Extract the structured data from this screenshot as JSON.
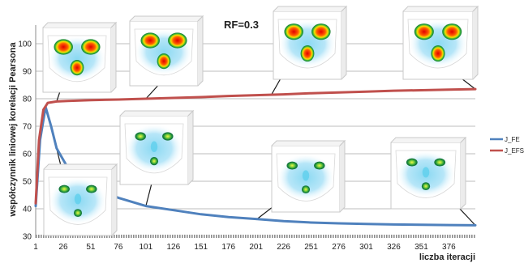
{
  "chart_data": {
    "type": "line",
    "title": "RF=0.3",
    "xlabel": "liczba iteracji",
    "ylabel": "współczynnik liniowej korelacji Pearsona",
    "x_ticks": [
      1,
      26,
      51,
      76,
      101,
      126,
      151,
      176,
      201,
      226,
      251,
      276,
      301,
      326,
      351,
      376
    ],
    "y_ticks": [
      30,
      40,
      50,
      60,
      70,
      80,
      90,
      100
    ],
    "xlim": [
      1,
      400
    ],
    "ylim": [
      30,
      105
    ],
    "grid": "horizontal",
    "legend_position": "right",
    "series": [
      {
        "name": "J_FE",
        "color": "#4f81bd",
        "x": [
          1,
          5,
          10,
          15,
          20,
          30,
          40,
          51,
          76,
          101,
          126,
          151,
          176,
          201,
          226,
          251,
          276,
          301,
          326,
          351,
          376,
          400
        ],
        "y": [
          41,
          65,
          77,
          70,
          62,
          55,
          51,
          48,
          44,
          41,
          39.5,
          38,
          37,
          36.3,
          35.5,
          35,
          34.7,
          34.5,
          34.3,
          34.2,
          34.1,
          34
        ]
      },
      {
        "name": "J_EFS",
        "color": "#c0504d",
        "x": [
          1,
          4,
          8,
          12,
          20,
          30,
          51,
          76,
          101,
          126,
          151,
          176,
          201,
          226,
          251,
          276,
          301,
          326,
          351,
          376,
          400
        ],
        "y": [
          42,
          65,
          76,
          78.5,
          79,
          79.2,
          79.5,
          79.7,
          80,
          80.3,
          80.6,
          81,
          81.3,
          81.6,
          82,
          82.3,
          82.6,
          82.9,
          83.1,
          83.3,
          83.5
        ]
      }
    ]
  },
  "insets": [
    {
      "name": "inset-1",
      "anchor_x": 20,
      "anchor_y": 79
    },
    {
      "name": "inset-2",
      "anchor_x": 101,
      "anchor_y": 80
    },
    {
      "name": "inset-3",
      "anchor_x": 215,
      "anchor_y": 81.5
    },
    {
      "name": "inset-4",
      "anchor_x": 400,
      "anchor_y": 83.5
    },
    {
      "name": "inset-5",
      "anchor_x": 15,
      "anchor_y": 70
    },
    {
      "name": "inset-6",
      "anchor_x": 101,
      "anchor_y": 41
    },
    {
      "name": "inset-7",
      "anchor_x": 201,
      "anchor_y": 36
    },
    {
      "name": "inset-8",
      "anchor_x": 400,
      "anchor_y": 34
    }
  ]
}
